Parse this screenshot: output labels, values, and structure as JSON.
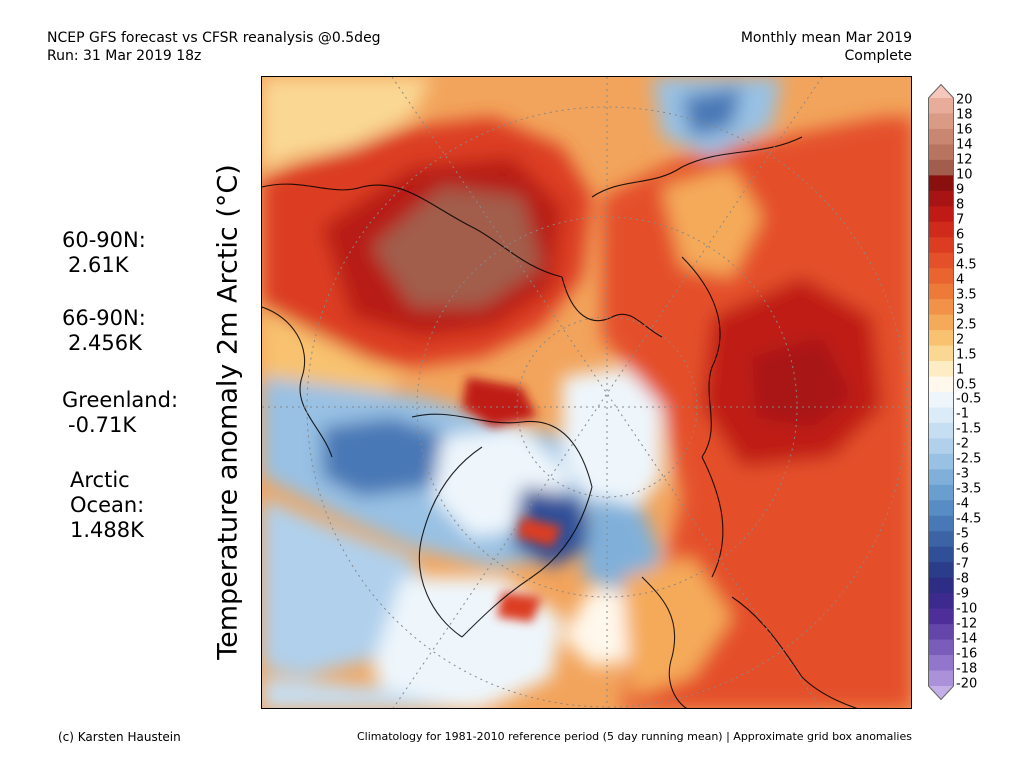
{
  "header": {
    "line1": "NCEP GFS forecast vs CFSR reanalysis @0.5deg",
    "line2": "Run: 31 Mar 2019 18z",
    "right1": "Monthly mean Mar 2019",
    "right2": "Complete"
  },
  "y_axis_title": "Temperature anomaly 2m Arctic (°C)",
  "stats": [
    {
      "label": "60-90N:",
      "value": "2.61K"
    },
    {
      "label": "66-90N:",
      "value": "2.456K"
    },
    {
      "label": "Greenland:",
      "value": "-0.71K"
    },
    {
      "label": "Arctic\nOcean:",
      "value": "1.488K"
    }
  ],
  "colorbar": {
    "labels": [
      "20",
      "18",
      "16",
      "14",
      "12",
      "10",
      "9",
      "8",
      "7",
      "6",
      "5",
      "4.5",
      "4",
      "3.5",
      "3",
      "2.5",
      "2",
      "1.5",
      "1",
      "0.5",
      "-0.5",
      "-1",
      "-1.5",
      "-2",
      "-2.5",
      "-3",
      "-3.5",
      "-4",
      "-4.5",
      "-5",
      "-6",
      "-7",
      "-8",
      "-9",
      "-10",
      "-12",
      "-14",
      "-16",
      "-18",
      "-20"
    ],
    "colors": [
      "#f5c8bb",
      "#e7ad9a",
      "#d99a86",
      "#c98672",
      "#b87461",
      "#a25d4c",
      "#8a1010",
      "#a81414",
      "#c01a16",
      "#d02a1c",
      "#dc3c22",
      "#e4502a",
      "#ea6430",
      "#ee7a3a",
      "#f29248",
      "#f5aa5a",
      "#f8c270",
      "#fad894",
      "#fdecc4",
      "#fff8ec",
      "#eef6fc",
      "#dcebf8",
      "#c6def2",
      "#b0d0ec",
      "#98c1e4",
      "#80b0da",
      "#6a9ecf",
      "#588cc4",
      "#4878b6",
      "#3b63a6",
      "#314f98",
      "#2a3c8a",
      "#2e2d86",
      "#3d2a8e",
      "#4e2f9a",
      "#6445aa",
      "#7a5dbb",
      "#9276cb",
      "#aa91da",
      "#c4afe8"
    ]
  },
  "footer": {
    "left": "(c) Karsten Haustein",
    "right": "Climatology for 1981-2010 reference period (5 day running mean) | Approximate grid box anomalies"
  }
}
